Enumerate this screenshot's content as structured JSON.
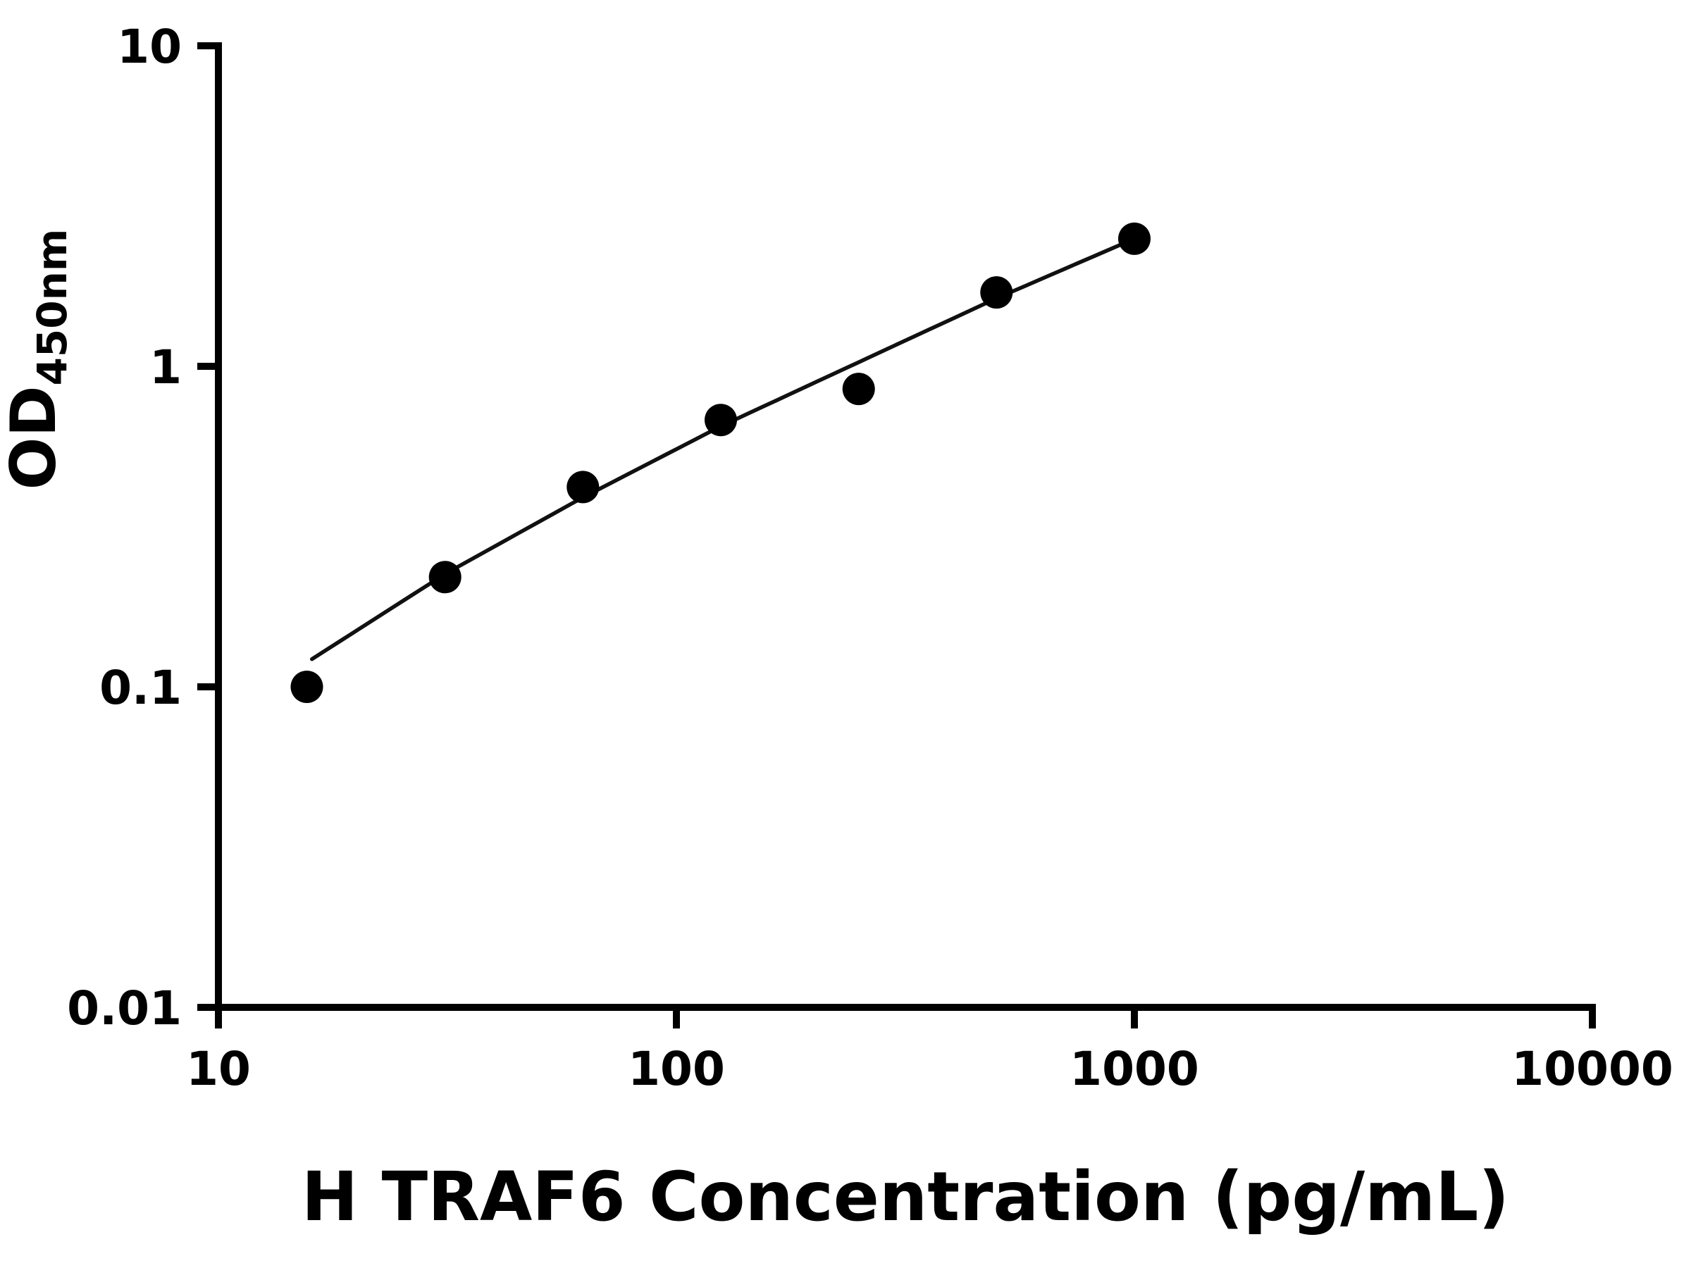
{
  "figure": {
    "background": "#ffffff",
    "axis_color": "#000000",
    "point_color": "#000000",
    "line_color": "#111111"
  },
  "chart_data": {
    "type": "scatter",
    "title": "",
    "xlabel": "H TRAF6 Concentration (pg/mL)",
    "ylabel": "OD",
    "ylabel_subscript": "450nm",
    "x_scale": "log",
    "y_scale": "log",
    "xlim": [
      10,
      10000
    ],
    "ylim": [
      0.01,
      10
    ],
    "x_ticks": [
      10,
      100,
      1000,
      10000
    ],
    "x_tick_labels": [
      "10",
      "100",
      "1000",
      "10000"
    ],
    "y_ticks": [
      0.01,
      0.1,
      1,
      10
    ],
    "y_tick_labels": [
      "0.01",
      "0.1",
      "1",
      "10"
    ],
    "grid": false,
    "legend": null,
    "points": [
      {
        "x": 15.6,
        "y": 0.1
      },
      {
        "x": 31.25,
        "y": 0.22
      },
      {
        "x": 62.5,
        "y": 0.42
      },
      {
        "x": 125,
        "y": 0.68
      },
      {
        "x": 250,
        "y": 0.85
      },
      {
        "x": 500,
        "y": 1.7
      },
      {
        "x": 1000,
        "y": 2.5
      }
    ],
    "fit_curve": {
      "type": "power-fit-line",
      "samples": [
        {
          "x": 16,
          "y": 0.122
        },
        {
          "x": 31.25,
          "y": 0.225
        },
        {
          "x": 62.5,
          "y": 0.39
        },
        {
          "x": 125,
          "y": 0.65
        },
        {
          "x": 250,
          "y": 1.03
        },
        {
          "x": 500,
          "y": 1.63
        },
        {
          "x": 1000,
          "y": 2.5
        }
      ]
    }
  }
}
